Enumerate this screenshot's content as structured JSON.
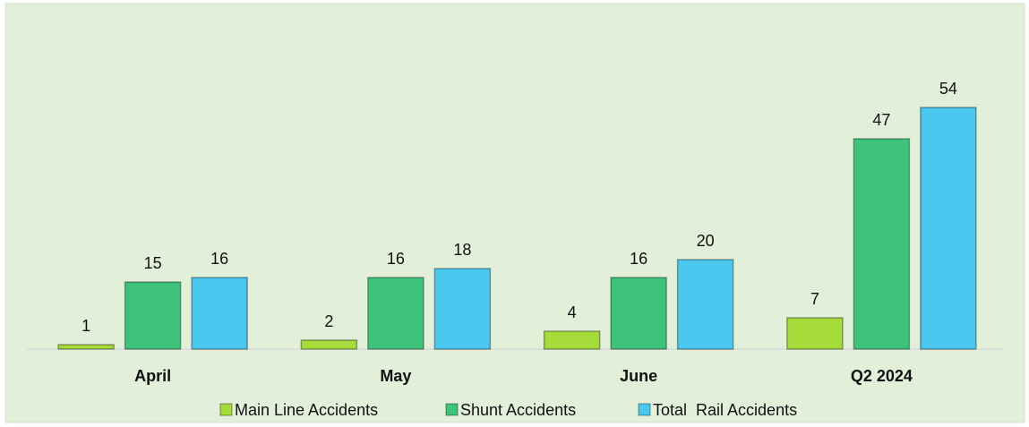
{
  "chart_data": {
    "type": "bar",
    "categories": [
      "April",
      "May",
      "June",
      "Q2 2024"
    ],
    "series": [
      {
        "name": "Main Line Accidents",
        "color": "#a6dc3a",
        "values": [
          1,
          2,
          4,
          7
        ]
      },
      {
        "name": "Shunt Accidents",
        "color": "#3dc47a",
        "values": [
          15,
          16,
          16,
          47
        ]
      },
      {
        "name": "Total  Rail Accidents",
        "color": "#4ac8ef",
        "values": [
          16,
          18,
          20,
          54
        ]
      }
    ],
    "legend": "bottom"
  }
}
